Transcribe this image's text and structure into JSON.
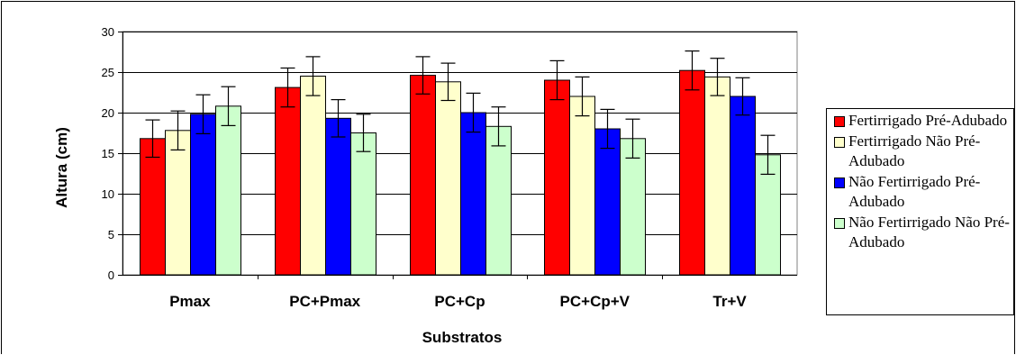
{
  "chart_data": {
    "type": "bar",
    "title": "",
    "xlabel": "Substratos",
    "ylabel": "Altura (cm)",
    "ylim": [
      0,
      30
    ],
    "yticks": [
      0,
      5,
      10,
      15,
      20,
      25,
      30
    ],
    "grid": true,
    "legend_position": "right",
    "categories": [
      "Pmax",
      "PC+Pmax",
      "PC+Cp",
      "PC+Cp+V",
      "Tr+V"
    ],
    "series": [
      {
        "name": "Fertirrigado Pré-Adubado",
        "color": "#ff0000",
        "values": [
          16.8,
          23.1,
          24.6,
          24.0,
          25.2
        ],
        "error": [
          2.3,
          2.4,
          2.3,
          2.4,
          2.4
        ]
      },
      {
        "name": "Fertirrigado Não Pré-Adubado",
        "color": "#ffffcc",
        "values": [
          17.8,
          24.5,
          23.8,
          22.0,
          24.4
        ],
        "error": [
          2.4,
          2.4,
          2.3,
          2.4,
          2.3
        ]
      },
      {
        "name": "Não Fertirrigado Pré-Adubado",
        "color": "#0000ff",
        "values": [
          19.8,
          19.3,
          20.0,
          18.0,
          22.0
        ],
        "error": [
          2.4,
          2.3,
          2.4,
          2.4,
          2.3
        ]
      },
      {
        "name": "Não Fertirrigado Não Pré-Adubado",
        "color": "#ccffcc",
        "values": [
          20.8,
          17.5,
          18.3,
          16.8,
          14.8
        ],
        "error": [
          2.4,
          2.3,
          2.4,
          2.4,
          2.4
        ]
      }
    ]
  },
  "legend": {
    "items": [
      "Fertirrigado Pré-Adubado",
      "Fertirrigado Não Pré-Adubado",
      "Não Fertirrigado Pré-Adubado",
      "Não Fertirrigado Não Pré-Adubado"
    ]
  }
}
